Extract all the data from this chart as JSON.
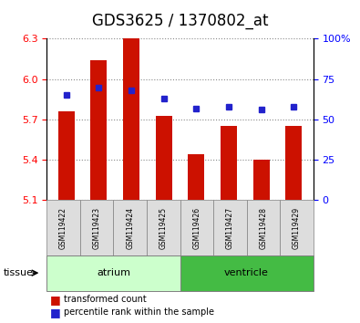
{
  "title": "GDS3625 / 1370802_at",
  "samples": [
    "GSM119422",
    "GSM119423",
    "GSM119424",
    "GSM119425",
    "GSM119426",
    "GSM119427",
    "GSM119428",
    "GSM119429"
  ],
  "transformed_count": [
    5.76,
    6.14,
    6.3,
    5.73,
    5.44,
    5.65,
    5.4,
    5.65
  ],
  "percentile_rank": [
    65,
    70,
    68,
    63,
    57,
    58,
    56,
    58
  ],
  "ylim_left": [
    5.1,
    6.3
  ],
  "ylim_right": [
    0,
    100
  ],
  "yticks_left": [
    5.1,
    5.4,
    5.7,
    6.0,
    6.3
  ],
  "yticks_right": [
    0,
    25,
    50,
    75,
    100
  ],
  "ytick_labels_right": [
    "0",
    "25",
    "50",
    "75",
    "100%"
  ],
  "bar_color": "#CC1100",
  "dot_color": "#2222CC",
  "grid_color": "#888888",
  "tissue_label": "tissue",
  "legend_bar_label": "transformed count",
  "legend_dot_label": "percentile rank within the sample",
  "bar_width": 0.5,
  "baseline": 5.1,
  "title_fontsize": 12,
  "tick_fontsize": 8,
  "atrium_color": "#CCFFCC",
  "ventricle_color": "#44BB44",
  "sample_box_color": "#DDDDDD"
}
